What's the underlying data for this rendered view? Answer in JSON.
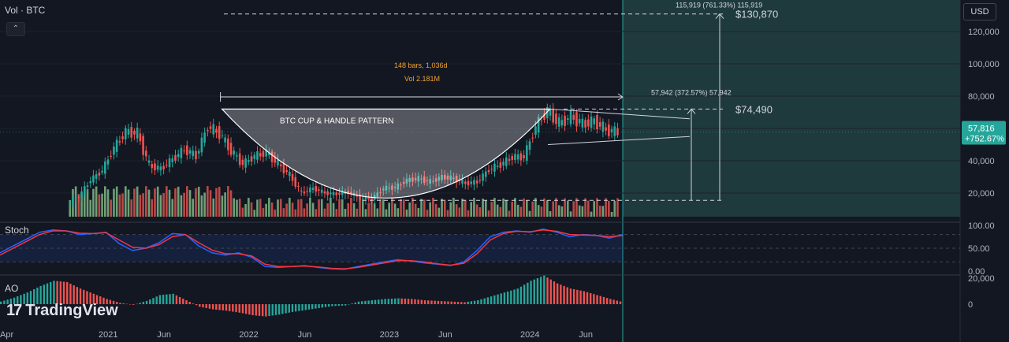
{
  "header": {
    "symbol_label": "Vol · BTC",
    "collapse_icon": "chevron-up-icon"
  },
  "currency_button": "USD",
  "logo": {
    "mark": "17",
    "text": "TradingView"
  },
  "annotations": {
    "pattern_title": "BTC CUP & HANDLE PATTERN",
    "range_bars": "148 bars, 1,036d",
    "range_vol": "Vol 2.181M",
    "target1_label": "57,942 (372.57%) 57,942",
    "target1_price": "$74,490",
    "target2_label": "115,919 (761.33%) 115,919",
    "target2_price": "$130,870"
  },
  "price_badge": {
    "price": "57,816",
    "change": "+752.67%"
  },
  "panes": {
    "stoch_label": "Stoch",
    "ao_label": "AO"
  },
  "colors": {
    "up": "#26a69a",
    "down": "#ef5350",
    "vol_up": "#7fba85",
    "vol_down": "#d9534f",
    "k_line": "#2962ff",
    "d_line": "#f23645",
    "projection_bg": "#1f3a3d",
    "projection_edge": "#26a69a"
  },
  "chart_data": [
    {
      "type": "candlestick",
      "title": "",
      "y_axis_ticks": [
        20000,
        40000,
        60000,
        80000,
        100000,
        120000
      ],
      "y_tick_labels": [
        "20,000",
        "40,000",
        "60,000",
        "80,000",
        "100,000",
        "120,000"
      ],
      "x_tick_labels": [
        "Apr",
        "2021",
        "Jun",
        "2022",
        "Jun",
        "2023",
        "Jun",
        "2024",
        "Jun"
      ],
      "x_tick_dates": [
        "2020-04",
        "2021-01",
        "2021-06",
        "2022-01",
        "2022-06",
        "2023-01",
        "2023-06",
        "2024-01",
        "2024-06"
      ],
      "ylim": [
        0,
        135000
      ],
      "approx_weekly_close": [
        [
          "2020-10",
          13000
        ],
        [
          "2020-11",
          18000
        ],
        [
          "2020-12",
          28000
        ],
        [
          "2021-01",
          34000
        ],
        [
          "2021-02",
          48000
        ],
        [
          "2021-03",
          58000
        ],
        [
          "2021-04",
          57000
        ],
        [
          "2021-05",
          37000
        ],
        [
          "2021-06",
          35000
        ],
        [
          "2021-07",
          41000
        ],
        [
          "2021-08",
          47000
        ],
        [
          "2021-09",
          43000
        ],
        [
          "2021-10",
          61000
        ],
        [
          "2021-11",
          57000
        ],
        [
          "2021-12",
          46000
        ],
        [
          "2022-01",
          38000
        ],
        [
          "2022-02",
          43000
        ],
        [
          "2022-03",
          45000
        ],
        [
          "2022-04",
          38000
        ],
        [
          "2022-05",
          31000
        ],
        [
          "2022-06",
          20000
        ],
        [
          "2022-07",
          23000
        ],
        [
          "2022-08",
          20000
        ],
        [
          "2022-09",
          19500
        ],
        [
          "2022-10",
          20500
        ],
        [
          "2022-11",
          17000
        ],
        [
          "2022-12",
          16500
        ],
        [
          "2023-01",
          23000
        ],
        [
          "2023-02",
          23500
        ],
        [
          "2023-03",
          28000
        ],
        [
          "2023-04",
          29000
        ],
        [
          "2023-05",
          27000
        ],
        [
          "2023-06",
          30000
        ],
        [
          "2023-07",
          29000
        ],
        [
          "2023-08",
          26000
        ],
        [
          "2023-09",
          27000
        ],
        [
          "2023-10",
          34500
        ],
        [
          "2023-11",
          37700
        ],
        [
          "2023-12",
          42300
        ],
        [
          "2024-01",
          42500
        ],
        [
          "2024-02",
          61000
        ],
        [
          "2024-03",
          71000
        ],
        [
          "2024-04",
          63000
        ],
        [
          "2024-05",
          67500
        ],
        [
          "2024-06",
          62700
        ],
        [
          "2024-07",
          64600
        ],
        [
          "2024-08",
          59000
        ],
        [
          "2024-09",
          57816
        ]
      ],
      "current_price": 57816,
      "levels": {
        "target2": 130870,
        "target1": 74490,
        "cup_rim": 72000,
        "cup_bottom": 15500
      }
    },
    {
      "type": "line",
      "title": "Stoch",
      "y_axis_ticks": [
        0,
        50,
        100
      ],
      "y_tick_labels": [
        "0.00",
        "50.00",
        "100.00"
      ],
      "band": [
        20,
        80
      ],
      "series": [
        {
          "name": "",
          "values": [
            40,
            55,
            70,
            85,
            90,
            88,
            80,
            82,
            85,
            60,
            45,
            50,
            62,
            82,
            80,
            55,
            40,
            35,
            40,
            30,
            10,
            8,
            10,
            12,
            8,
            5,
            4,
            10,
            15,
            20,
            25,
            22,
            18,
            15,
            12,
            20,
            45,
            75,
            85,
            88,
            85,
            92,
            85,
            75,
            80,
            78,
            72,
            80
          ]
        },
        {
          "name": "",
          "values": [
            35,
            50,
            65,
            80,
            88,
            88,
            83,
            82,
            84,
            68,
            52,
            50,
            58,
            75,
            80,
            62,
            46,
            38,
            38,
            33,
            15,
            10,
            10,
            11,
            9,
            6,
            5,
            8,
            13,
            18,
            23,
            23,
            20,
            16,
            13,
            17,
            38,
            68,
            82,
            87,
            86,
            90,
            87,
            80,
            79,
            78,
            75,
            78
          ]
        }
      ]
    },
    {
      "type": "bar",
      "title": "AO",
      "y_axis_ticks": [
        0,
        20000
      ],
      "y_tick_labels": [
        "0",
        "20,000"
      ],
      "values": [
        2000,
        5000,
        9000,
        14000,
        18000,
        17000,
        12000,
        8000,
        4000,
        1000,
        -500,
        2500,
        7000,
        8000,
        3000,
        -2000,
        -4000,
        -5000,
        -6500,
        -8500,
        -9500,
        -8000,
        -6000,
        -4500,
        -3000,
        -1500,
        -1000,
        2000,
        3000,
        4000,
        4500,
        4000,
        3000,
        2500,
        2000,
        1500,
        3000,
        6000,
        9000,
        12000,
        18000,
        22000,
        16000,
        12000,
        10000,
        7000,
        4000,
        1500
      ]
    }
  ]
}
